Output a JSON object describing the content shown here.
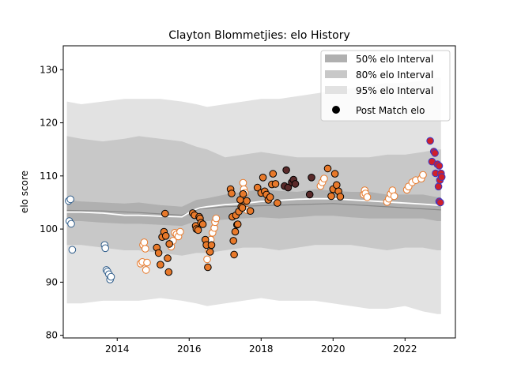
{
  "chart_data": {
    "type": "scatter",
    "title": "Clayton Blommetjies: elo History",
    "xlabel": "",
    "ylabel": "elo score",
    "xlim": [
      2012.5,
      2023.4
    ],
    "ylim": [
      79.5,
      134.5
    ],
    "x_ticks": [
      2014,
      2016,
      2018,
      2020,
      2022
    ],
    "y_ticks": [
      80,
      90,
      100,
      110,
      120,
      130
    ],
    "legend": {
      "position": "top-right",
      "entries": [
        {
          "label": "50% elo Interval",
          "color": "#b0b0b0",
          "kind": "patch"
        },
        {
          "label": "80% elo Interval",
          "color": "#c8c8c8",
          "kind": "patch"
        },
        {
          "label": "95% elo Interval",
          "color": "#e2e2e2",
          "kind": "patch"
        },
        {
          "label": "Post Match elo",
          "color": "#000000",
          "kind": "marker"
        }
      ]
    },
    "colors": {
      "band50": "#b0b0b0",
      "band80": "#c8c8c8",
      "band95": "#e2e2e2",
      "mean_line": "#ffffff",
      "median_line": "#888888"
    },
    "intervals": {
      "x": [
        2012.6,
        2013.0,
        2013.6,
        2014.2,
        2014.6,
        2015.2,
        2015.8,
        2016.2,
        2016.5,
        2017.0,
        2017.5,
        2018.0,
        2018.5,
        2019.0,
        2019.5,
        2020.0,
        2020.5,
        2021.0,
        2021.5,
        2022.0,
        2022.5,
        2022.9,
        2023.0
      ],
      "p50_low": [
        101.5,
        101.5,
        101.2,
        101.0,
        101.0,
        100.8,
        100.6,
        101.5,
        101.5,
        101.8,
        102.0,
        102.2,
        102.0,
        102.2,
        102.5,
        102.5,
        102.2,
        102.0,
        102.0,
        102.0,
        102.0,
        101.5,
        101.5
      ],
      "p50_high": [
        105.5,
        105.2,
        105.0,
        104.8,
        105.0,
        104.5,
        104.2,
        105.5,
        105.8,
        106.5,
        107.0,
        107.5,
        107.2,
        107.0,
        107.5,
        107.2,
        107.0,
        107.0,
        106.5,
        106.5,
        106.5,
        106.0,
        106.0
      ],
      "p80_low": [
        97.0,
        97.0,
        96.5,
        96.0,
        96.0,
        95.5,
        95.0,
        95.5,
        95.5,
        96.0,
        96.5,
        96.5,
        96.0,
        96.5,
        97.0,
        97.0,
        97.0,
        96.5,
        96.0,
        96.5,
        96.5,
        96.0,
        96.0
      ],
      "p80_high": [
        117.5,
        117.0,
        116.5,
        117.0,
        117.5,
        117.0,
        116.5,
        115.5,
        115.0,
        113.5,
        114.0,
        114.5,
        114.0,
        113.5,
        113.5,
        113.5,
        113.5,
        113.5,
        114.0,
        114.0,
        114.5,
        115.0,
        115.0
      ],
      "p95_low": [
        86.0,
        86.0,
        86.5,
        86.5,
        86.5,
        87.0,
        86.5,
        86.0,
        85.5,
        86.0,
        86.5,
        87.0,
        86.5,
        86.5,
        86.5,
        86.0,
        85.5,
        85.0,
        85.0,
        85.5,
        84.5,
        84.0,
        84.0
      ],
      "p95_high": [
        124.0,
        123.5,
        124.0,
        124.5,
        124.5,
        124.5,
        124.0,
        123.5,
        123.0,
        123.5,
        124.0,
        124.5,
        124.5,
        125.0,
        125.5,
        126.0,
        126.5,
        127.0,
        127.5,
        127.5,
        128.0,
        128.5,
        128.5
      ]
    },
    "mean_line": {
      "x": [
        2012.6,
        2013.0,
        2013.6,
        2014.2,
        2014.6,
        2015.2,
        2015.8,
        2016.1,
        2016.3,
        2016.5,
        2017.0,
        2017.5,
        2018.0,
        2018.5,
        2019.0,
        2019.5,
        2020.0,
        2020.5,
        2021.0,
        2021.5,
        2022.0,
        2022.5,
        2022.9,
        2023.0
      ],
      "y": [
        103.2,
        103.2,
        103.0,
        102.6,
        102.6,
        102.4,
        102.3,
        103.5,
        104.0,
        104.2,
        104.6,
        104.8,
        105.2,
        105.4,
        105.6,
        105.7,
        105.7,
        105.5,
        105.3,
        105.1,
        104.9,
        104.7,
        104.5,
        104.5
      ]
    },
    "median_line": {
      "x": [
        2012.6,
        2013.6,
        2014.6,
        2015.8,
        2016.3,
        2017.0,
        2018.0,
        2019.0,
        2020.0,
        2021.0,
        2022.0,
        2023.0
      ],
      "y": [
        103.5,
        103.4,
        103.1,
        102.6,
        103.8,
        104.2,
        104.4,
        104.6,
        104.8,
        104.4,
        104.0,
        103.6
      ]
    },
    "series": [
      {
        "fill": "#ffffff",
        "edge": "#2e5c8a",
        "points": [
          [
            2012.65,
            105.3
          ],
          [
            2012.7,
            105.6
          ],
          [
            2012.67,
            101.5
          ],
          [
            2012.72,
            101.0
          ],
          [
            2012.75,
            96.1
          ],
          [
            2013.65,
            97.0
          ],
          [
            2013.67,
            96.4
          ],
          [
            2013.7,
            92.3
          ],
          [
            2013.73,
            92.0
          ],
          [
            2013.77,
            91.5
          ],
          [
            2013.8,
            90.5
          ],
          [
            2013.83,
            91.0
          ]
        ]
      },
      {
        "fill": "#ffffff",
        "edge": "#e8792a",
        "points": [
          [
            2014.65,
            93.5
          ],
          [
            2014.7,
            93.8
          ],
          [
            2014.72,
            97.0
          ],
          [
            2014.75,
            97.5
          ],
          [
            2014.78,
            96.3
          ],
          [
            2014.8,
            92.3
          ],
          [
            2014.83,
            93.7
          ],
          [
            2015.5,
            96.7
          ],
          [
            2015.55,
            97.8
          ],
          [
            2015.6,
            99.3
          ],
          [
            2015.65,
            99.0
          ],
          [
            2015.7,
            98.6
          ],
          [
            2015.75,
            99.5
          ],
          [
            2016.5,
            94.3
          ],
          [
            2016.55,
            96.0
          ],
          [
            2016.6,
            98.0
          ],
          [
            2016.65,
            99.3
          ],
          [
            2016.7,
            100.2
          ],
          [
            2016.72,
            101.3
          ],
          [
            2016.75,
            102.0
          ],
          [
            2017.5,
            108.7
          ],
          [
            2017.52,
            107.5
          ],
          [
            2017.55,
            106.8
          ],
          [
            2017.58,
            105.2
          ],
          [
            2017.6,
            103.6
          ],
          [
            2020.85,
            106.5
          ],
          [
            2020.88,
            107.3
          ],
          [
            2020.9,
            106.7
          ],
          [
            2020.95,
            106.0
          ],
          [
            2021.5,
            105.1
          ],
          [
            2021.55,
            105.7
          ],
          [
            2021.6,
            106.6
          ],
          [
            2021.65,
            107.3
          ],
          [
            2021.7,
            106.2
          ],
          [
            2022.05,
            107.4
          ],
          [
            2022.1,
            108.0
          ],
          [
            2022.2,
            108.8
          ],
          [
            2022.3,
            109.2
          ],
          [
            2022.45,
            109.5
          ],
          [
            2022.5,
            110.2
          ]
        ]
      },
      {
        "fill": "#e8792a",
        "edge": "#000000",
        "points": [
          [
            2015.1,
            96.5
          ],
          [
            2015.15,
            95.5
          ],
          [
            2015.2,
            93.3
          ],
          [
            2015.25,
            98.5
          ],
          [
            2015.3,
            99.5
          ],
          [
            2015.33,
            102.9
          ],
          [
            2015.35,
            98.7
          ],
          [
            2015.4,
            94.5
          ],
          [
            2015.43,
            91.9
          ],
          [
            2015.45,
            97.2
          ],
          [
            2016.1,
            103.0
          ],
          [
            2016.15,
            102.6
          ],
          [
            2016.18,
            100.6
          ],
          [
            2016.2,
            100.0
          ],
          [
            2016.25,
            99.8
          ],
          [
            2016.28,
            102.3
          ],
          [
            2016.3,
            102.0
          ],
          [
            2016.33,
            101.2
          ],
          [
            2016.38,
            100.9
          ],
          [
            2016.45,
            98.0
          ],
          [
            2016.48,
            97.0
          ],
          [
            2016.52,
            92.8
          ],
          [
            2016.58,
            95.7
          ],
          [
            2016.62,
            97.0
          ],
          [
            2017.15,
            107.5
          ],
          [
            2017.18,
            106.7
          ],
          [
            2017.2,
            102.3
          ],
          [
            2017.23,
            97.8
          ],
          [
            2017.25,
            95.2
          ],
          [
            2017.28,
            99.5
          ],
          [
            2017.3,
            102.6
          ],
          [
            2017.33,
            100.8
          ],
          [
            2017.35,
            100.9
          ],
          [
            2017.38,
            103.3
          ],
          [
            2017.42,
            105.5
          ],
          [
            2017.45,
            104.2
          ],
          [
            2017.48,
            104.0
          ],
          [
            2017.5,
            106.6
          ],
          [
            2017.6,
            105.3
          ],
          [
            2017.7,
            103.4
          ],
          [
            2017.9,
            107.8
          ],
          [
            2018.0,
            106.8
          ],
          [
            2018.05,
            109.7
          ],
          [
            2018.1,
            107.1
          ],
          [
            2018.15,
            106.5
          ],
          [
            2018.2,
            105.5
          ],
          [
            2018.25,
            106.0
          ],
          [
            2018.3,
            108.4
          ],
          [
            2018.33,
            110.4
          ],
          [
            2018.4,
            108.5
          ],
          [
            2018.45,
            104.9
          ],
          [
            2019.85,
            111.4
          ],
          [
            2019.95,
            106.2
          ],
          [
            2020.0,
            107.5
          ],
          [
            2020.05,
            110.4
          ],
          [
            2020.1,
            108.3
          ],
          [
            2020.15,
            107.1
          ],
          [
            2020.2,
            106.1
          ]
        ]
      },
      {
        "fill": "#5a2a2a",
        "edge": "#000000",
        "points": [
          [
            2018.65,
            108.1
          ],
          [
            2018.7,
            111.1
          ],
          [
            2018.75,
            107.8
          ],
          [
            2018.85,
            108.8
          ],
          [
            2018.9,
            109.3
          ],
          [
            2018.95,
            108.5
          ],
          [
            2019.35,
            106.5
          ],
          [
            2019.4,
            109.7
          ]
        ]
      },
      {
        "fill": "#ffffff",
        "edge": "#e8792a",
        "points": [
          [
            2019.65,
            108.1
          ],
          [
            2019.7,
            108.8
          ],
          [
            2019.75,
            109.5
          ]
        ]
      },
      {
        "fill": "#d0202a",
        "edge": "#3838c8",
        "points": [
          [
            2022.7,
            116.6
          ],
          [
            2022.75,
            112.7
          ],
          [
            2022.8,
            114.6
          ],
          [
            2022.83,
            114.3
          ],
          [
            2022.85,
            110.5
          ],
          [
            2022.9,
            112.2
          ],
          [
            2022.93,
            108.0
          ],
          [
            2022.95,
            111.9
          ],
          [
            2022.97,
            109.2
          ],
          [
            2023.0,
            110.5
          ],
          [
            2023.02,
            109.8
          ],
          [
            2022.95,
            105.2
          ],
          [
            2022.98,
            105.0
          ]
        ]
      }
    ]
  }
}
